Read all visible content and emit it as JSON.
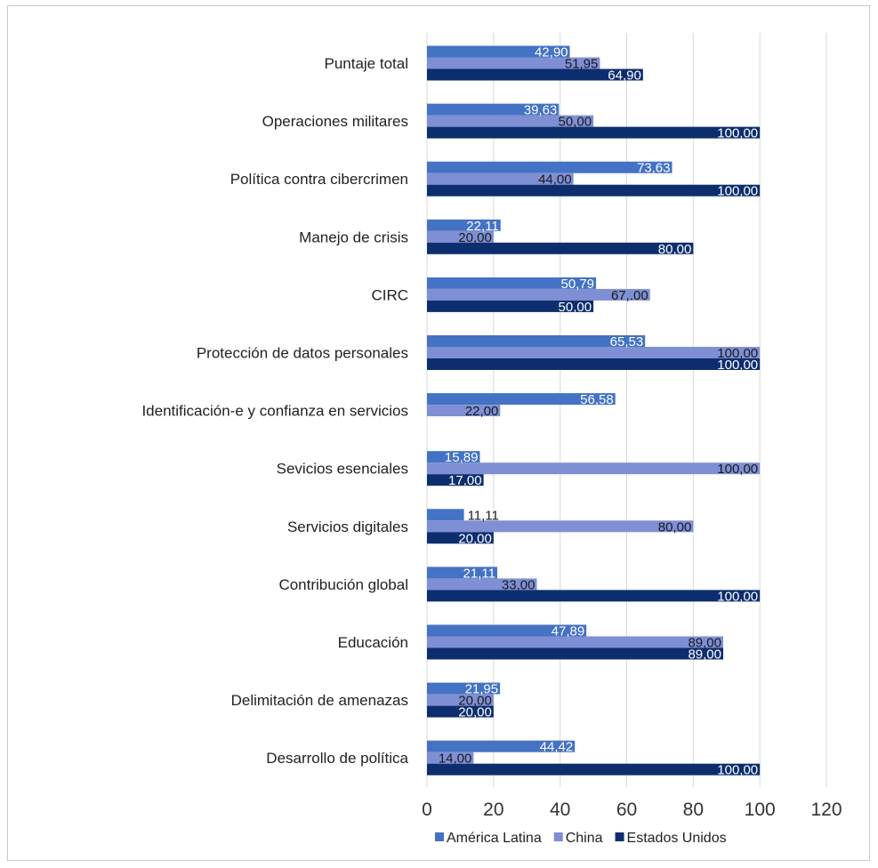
{
  "chart_data": {
    "type": "bar",
    "orientation": "horizontal",
    "categories": [
      "Puntaje total",
      "Operaciones militares",
      "Política contra cibercrimen",
      "Manejo de crisis",
      "CIRC",
      "Protección de datos personales",
      "Identificación-e y confianza en servicios",
      "Sevicios esenciales",
      "Servicios digitales",
      "Contribución global",
      "Educación",
      "Delimitación de amenazas",
      "Desarrollo de política"
    ],
    "series": [
      {
        "name": "América Latina",
        "color": "#4472c4",
        "values": [
          42.9,
          39.63,
          73.63,
          22.11,
          50.79,
          65.53,
          56.58,
          15.89,
          11.11,
          21.11,
          47.89,
          21.95,
          44.42
        ],
        "labels": [
          "42,90",
          "39,63",
          "73,63",
          "22,11",
          "50,79",
          "65,53",
          "56,58",
          "15,89",
          "11,11",
          "21,11",
          "47,89",
          "21,95",
          "44,42"
        ]
      },
      {
        "name": "China",
        "color": "#7f8fd4",
        "values": [
          51.95,
          50.0,
          44.0,
          20.0,
          67.0,
          100.0,
          22.0,
          100.0,
          80.0,
          33.0,
          89.0,
          20.0,
          14.0
        ],
        "labels": [
          "51,95",
          "50,00",
          "44,00",
          "20,00",
          "67,.00",
          "100,00",
          "22,00",
          "100,00",
          "80,00",
          "33,00",
          "89,00",
          "20,00",
          "14,00"
        ]
      },
      {
        "name": "Estados Unidos",
        "color": "#0d2e6e",
        "values": [
          64.9,
          100.0,
          100.0,
          80.0,
          50.0,
          100.0,
          null,
          17.0,
          20.0,
          100.0,
          89.0,
          20.0,
          100.0
        ],
        "labels": [
          "64,90",
          "100,00",
          "100,00",
          "80,00",
          "50,00",
          "100,00",
          "",
          "17,00",
          "20,00",
          "100,00",
          "89,00",
          "20,00",
          "100,00"
        ]
      }
    ],
    "xlim": [
      0,
      120
    ],
    "xticks": [
      "0",
      "20",
      "40",
      "60",
      "80",
      "100",
      "120"
    ],
    "grid": true,
    "legend_position": "bottom",
    "title": "",
    "xlabel": "",
    "ylabel": ""
  }
}
